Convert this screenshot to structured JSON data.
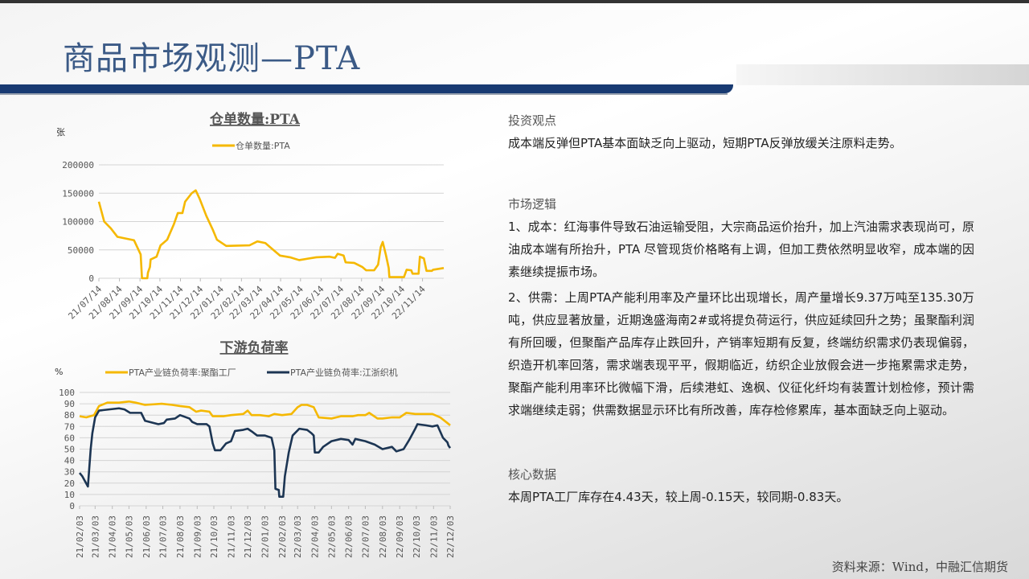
{
  "header": {
    "title": "商品市场观测—PTA"
  },
  "chart_data": [
    {
      "type": "line",
      "title": "仓单数量:PTA",
      "ylabel": "张",
      "ylim": [
        0,
        200000
      ],
      "yticks": [
        "0",
        "50000",
        "100000",
        "150000",
        "200000"
      ],
      "xticks": [
        "21/07/14",
        "21/08/14",
        "21/09/14",
        "21/10/14",
        "21/11/14",
        "21/12/14",
        "22/01/14",
        "22/02/14",
        "22/03/14",
        "22/04/14",
        "22/05/14",
        "22/06/14",
        "22/07/14",
        "22/08/14",
        "22/09/14",
        "22/10/14",
        "22/11/14"
      ],
      "grid": true,
      "legend": "top",
      "series": [
        {
          "name": "仓单数量:PTA",
          "color": "#f5b800",
          "x": [
            "2021-07-14",
            "2021-07-22",
            "2021-08-01",
            "2021-08-11",
            "2021-09-05",
            "2021-09-15",
            "2021-09-17",
            "2021-09-25",
            "2021-09-26",
            "2021-09-29",
            "2021-09-30",
            "2021-10-09",
            "2021-10-15",
            "2021-10-25",
            "2021-11-04",
            "2021-11-10",
            "2021-11-17",
            "2021-11-21",
            "2021-12-01",
            "2021-12-07",
            "2021-12-13",
            "2021-12-23",
            "2022-01-02",
            "2022-01-08",
            "2022-01-22",
            "2022-02-26",
            "2022-03-10",
            "2022-03-22",
            "2022-04-03",
            "2022-04-13",
            "2022-04-28",
            "2022-05-12",
            "2022-06-07",
            "2022-06-27",
            "2022-07-05",
            "2022-07-09",
            "2022-07-18",
            "2022-07-21",
            "2022-08-03",
            "2022-08-15",
            "2022-08-21",
            "2022-09-02",
            "2022-09-08",
            "2022-09-12",
            "2022-09-15",
            "2022-09-20",
            "2022-09-24",
            "2022-09-25",
            "2022-10-17",
            "2022-10-21",
            "2022-10-28",
            "2022-10-30",
            "2022-11-08",
            "2022-11-10",
            "2022-11-16",
            "2022-11-20",
            "2022-11-28",
            "2022-11-30",
            "2022-12-16"
          ],
          "values": [
            135000,
            100000,
            88000,
            73000,
            67000,
            42000,
            0,
            0,
            10000,
            20000,
            33000,
            38000,
            58000,
            68000,
            95000,
            115000,
            115000,
            135000,
            150000,
            155000,
            140000,
            110000,
            85000,
            68000,
            57000,
            58000,
            65000,
            62000,
            50000,
            40000,
            37000,
            32000,
            37000,
            38000,
            36000,
            43000,
            40000,
            28000,
            27000,
            20000,
            14000,
            14000,
            24000,
            55000,
            64000,
            40000,
            18000,
            2000,
            2000,
            15000,
            14000,
            8000,
            8000,
            38000,
            35000,
            13000,
            13000,
            15000,
            18000
          ]
        }
      ]
    },
    {
      "type": "line",
      "title": "下游负荷率",
      "ylabel": "%",
      "ylim": [
        0,
        100
      ],
      "yticks": [
        "0",
        "10",
        "20",
        "30",
        "40",
        "50",
        "60",
        "70",
        "80",
        "90",
        "100"
      ],
      "xticks": [
        "21/02/03",
        "21/03/03",
        "21/04/03",
        "21/05/03",
        "21/06/03",
        "21/07/03",
        "21/08/03",
        "21/09/03",
        "21/10/03",
        "21/11/03",
        "21/12/03",
        "22/01/03",
        "22/02/03",
        "22/03/03",
        "22/04/03",
        "22/05/03",
        "22/06/03",
        "22/07/03",
        "22/08/03",
        "22/09/03",
        "22/10/03",
        "22/11/03",
        "22/12/03"
      ],
      "grid": true,
      "legend": "top",
      "series": [
        {
          "name": "PTA产业链负荷率:聚酯工厂",
          "color": "#f5b800",
          "x": [
            "2021-02-03",
            "2021-02-15",
            "2021-03-01",
            "2021-03-10",
            "2021-03-25",
            "2021-04-15",
            "2021-05-03",
            "2021-05-15",
            "2021-06-01",
            "2021-07-01",
            "2021-07-20",
            "2021-08-03",
            "2021-08-20",
            "2021-09-01",
            "2021-09-10",
            "2021-09-25",
            "2021-10-01",
            "2021-10-20",
            "2021-11-03",
            "2021-11-25",
            "2021-12-03",
            "2021-12-10",
            "2021-12-25",
            "2022-01-10",
            "2022-01-20",
            "2022-02-03",
            "2022-02-20",
            "2022-03-03",
            "2022-03-10",
            "2022-03-20",
            "2022-04-01",
            "2022-04-03",
            "2022-04-10",
            "2022-05-03",
            "2022-05-20",
            "2022-06-10",
            "2022-06-20",
            "2022-07-03",
            "2022-07-10",
            "2022-07-25",
            "2022-08-03",
            "2022-08-20",
            "2022-09-03",
            "2022-09-15",
            "2022-10-01",
            "2022-11-01",
            "2022-11-15",
            "2022-11-28",
            "2022-12-03"
          ],
          "values": [
            79,
            78,
            80,
            88,
            91,
            91,
            92,
            91,
            89,
            90,
            89,
            88,
            87,
            83,
            84,
            83,
            79,
            79,
            80,
            81,
            84,
            80,
            80,
            79,
            81,
            80,
            81,
            87,
            89,
            89,
            87,
            85,
            78,
            77,
            79,
            79,
            80,
            80,
            82,
            77,
            77,
            78,
            78,
            82,
            81,
            81,
            78,
            73,
            71
          ]
        },
        {
          "name": "PTA产业链负荷率:江浙织机",
          "color": "#1c3553",
          "x": [
            "2021-02-03",
            "2021-02-08",
            "2021-02-18",
            "2021-02-23",
            "2021-02-26",
            "2021-03-03",
            "2021-03-10",
            "2021-04-15",
            "2021-04-25",
            "2021-05-05",
            "2021-05-25",
            "2021-06-01",
            "2021-06-25",
            "2021-07-05",
            "2021-07-10",
            "2021-07-25",
            "2021-08-03",
            "2021-08-20",
            "2021-08-25",
            "2021-09-03",
            "2021-09-20",
            "2021-09-25",
            "2021-10-01",
            "2021-10-05",
            "2021-10-15",
            "2021-10-25",
            "2021-11-03",
            "2021-11-10",
            "2021-11-25",
            "2021-12-03",
            "2021-12-12",
            "2021-12-20",
            "2022-01-03",
            "2022-01-15",
            "2022-01-20",
            "2022-01-22",
            "2022-01-28",
            "2022-01-29",
            "2022-02-05",
            "2022-02-08",
            "2022-02-15",
            "2022-02-22",
            "2022-03-06",
            "2022-03-20",
            "2022-03-28",
            "2022-04-01",
            "2022-04-03",
            "2022-04-10",
            "2022-04-18",
            "2022-05-03",
            "2022-05-20",
            "2022-06-03",
            "2022-06-10",
            "2022-06-15",
            "2022-07-03",
            "2022-07-20",
            "2022-08-03",
            "2022-08-20",
            "2022-08-28",
            "2022-09-10",
            "2022-09-20",
            "2022-10-01",
            "2022-10-05",
            "2022-10-20",
            "2022-11-01",
            "2022-11-10",
            "2022-11-20",
            "2022-11-28",
            "2022-11-30",
            "2022-12-03"
          ],
          "values": [
            29,
            26,
            17,
            50,
            64,
            78,
            84,
            86,
            85,
            82,
            82,
            75,
            72,
            73,
            76,
            77,
            80,
            77,
            74,
            72,
            72,
            70,
            55,
            49,
            49,
            55,
            57,
            66,
            67,
            68,
            65,
            62,
            62,
            60,
            49,
            15,
            14,
            8,
            8,
            26,
            47,
            62,
            68,
            67,
            64,
            62,
            47,
            47,
            52,
            57,
            59,
            58,
            54,
            59,
            57,
            54,
            50,
            52,
            48,
            50,
            58,
            68,
            72,
            71,
            70,
            71,
            60,
            56,
            53,
            51
          ]
        }
      ]
    }
  ],
  "right": {
    "view_heading": "投资观点",
    "view_text": "成本端反弹但PTA基本面缺乏向上驱动，短期PTA反弹放缓关注原料走势。",
    "logic_heading": "市场逻辑",
    "logic_p1": "1、成本：红海事件导致石油运输受阻，大宗商品运价抬升，加上汽油需求表现尚可，原油成本端有所抬升，PTA 尽管现货价格略有上调，但加工费依然明显收窄，成本端的因素继续提振市场。",
    "logic_p2": "2、供需：上周PTA产能利用率及产量环比出现增长，周产量增长9.37万吨至135.30万吨，供应显著放量，近期逸盛海南2#或将提负荷运行，供应延续回升之势；虽聚酯利润有所回暖，但聚酯产品库存止跌回升，产销率短期有反复，终端纺织需求仍表现偏弱，织造开机率回落，需求端表现平平，假期临近，纺织企业放假会进一步拖累需求走势，聚酯产能利用率环比微幅下滑，后续港虹、逸枫、仪征化纤均有装置计划检修，预计需求端继续走弱；供需数据显示环比有所改善，库存检修累库，基本面缺乏向上驱动。",
    "core_heading": "核心数据",
    "core_text": "本周PTA工厂库存在4.43天，较上周-0.15天，较同期-0.83天。"
  },
  "footer": {
    "source": "资料来源：Wind，中融汇信期货"
  }
}
